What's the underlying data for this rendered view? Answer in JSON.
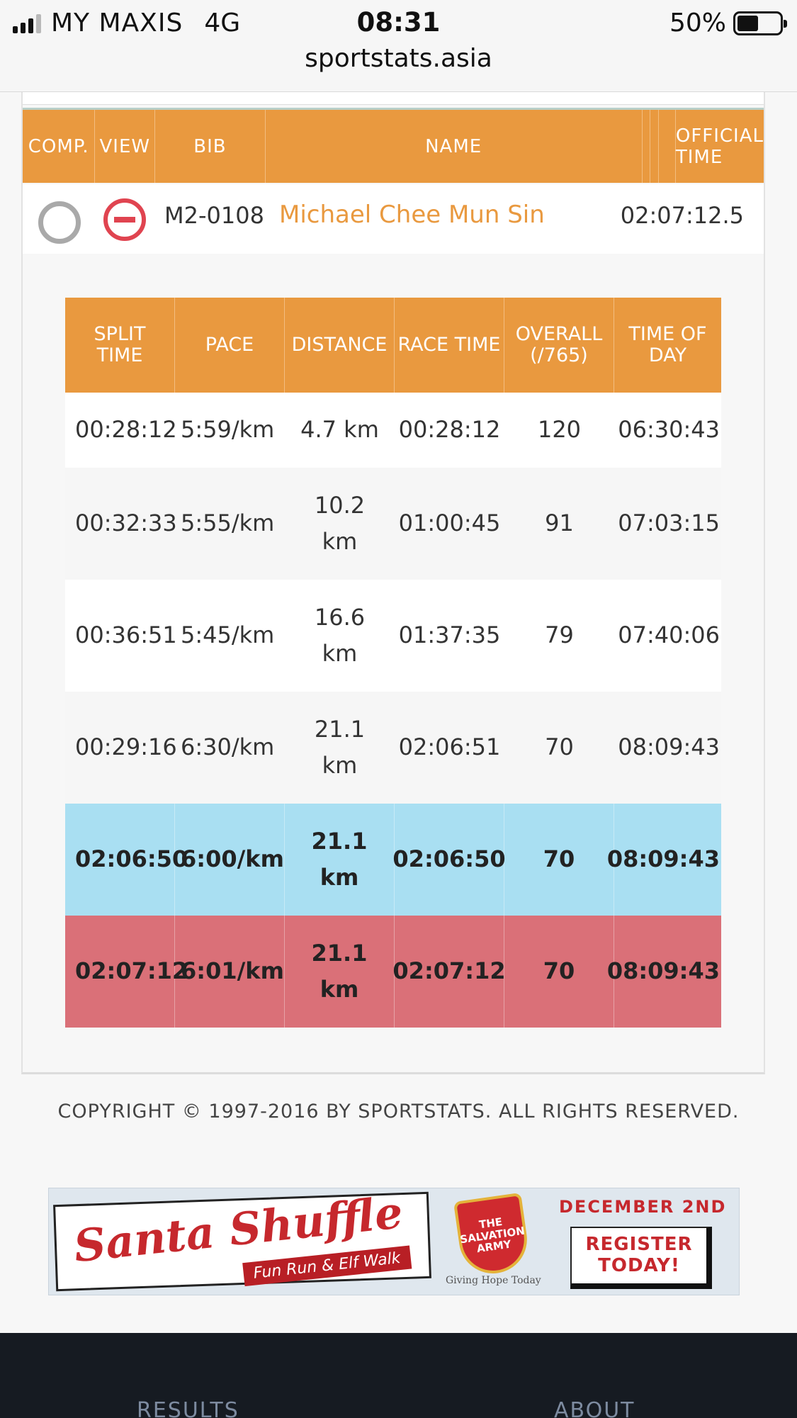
{
  "status_bar": {
    "carrier": "MY MAXIS",
    "network": "4G",
    "time": "08:31",
    "battery": "50%",
    "battery_level": 0.5,
    "url": "sportstats.asia"
  },
  "results_table": {
    "headers": {
      "comp": "COMP.",
      "view": "VIEW",
      "bib": "BIB",
      "name": "NAME",
      "official_time": "OFFICIAL TIME"
    },
    "athlete": {
      "bib": "M2-0108",
      "name": "Michael Chee Mun Sin",
      "official_time": "02:07:12.5"
    }
  },
  "splits": {
    "headers": {
      "split_time": "SPLIT TIME",
      "pace": "PACE",
      "distance": "DISTANCE",
      "race_time": "RACE TIME",
      "overall": "OVERALL (/765)",
      "time_of_day": "TIME OF DAY"
    },
    "rows": [
      {
        "split_time": "00:28:12",
        "pace": "5:59/km",
        "distance": "4.7 km",
        "race_time": "00:28:12",
        "overall": "120",
        "time_of_day": "06:30:43"
      },
      {
        "split_time": "00:32:33",
        "pace": "5:55/km",
        "distance": "10.2 km",
        "race_time": "01:00:45",
        "overall": "91",
        "time_of_day": "07:03:15"
      },
      {
        "split_time": "00:36:51",
        "pace": "5:45/km",
        "distance": "16.6 km",
        "race_time": "01:37:35",
        "overall": "79",
        "time_of_day": "07:40:06"
      },
      {
        "split_time": "00:29:16",
        "pace": "6:30/km",
        "distance": "21.1 km",
        "race_time": "02:06:51",
        "overall": "70",
        "time_of_day": "08:09:43"
      },
      {
        "split_time": "02:06:50",
        "pace": "6:00/km",
        "distance": "21.1 km",
        "race_time": "02:06:50",
        "overall": "70",
        "time_of_day": "08:09:43"
      },
      {
        "split_time": "02:07:12",
        "pace": "6:01/km",
        "distance": "21.1 km",
        "race_time": "02:07:12",
        "overall": "70",
        "time_of_day": "08:09:43"
      }
    ]
  },
  "copyright": "COPYRIGHT © 1997-2016 BY SPORTSTATS. ALL RIGHTS RESERVED.",
  "ad": {
    "title": "Santa Shuffle",
    "subtitle": "Fun Run & Elf Walk",
    "org": "THE SALVATION ARMY",
    "tagline": "Giving Hope Today",
    "date": "DECEMBER 2ND",
    "cta": "REGISTER TODAY!"
  },
  "footer": {
    "results": "RESULTS",
    "about": "ABOUT"
  },
  "colors": {
    "accent_orange": "#e9993f",
    "highlight_blue": "#a9dff2",
    "highlight_red": "#da7078",
    "footer_bg": "#161b22"
  }
}
